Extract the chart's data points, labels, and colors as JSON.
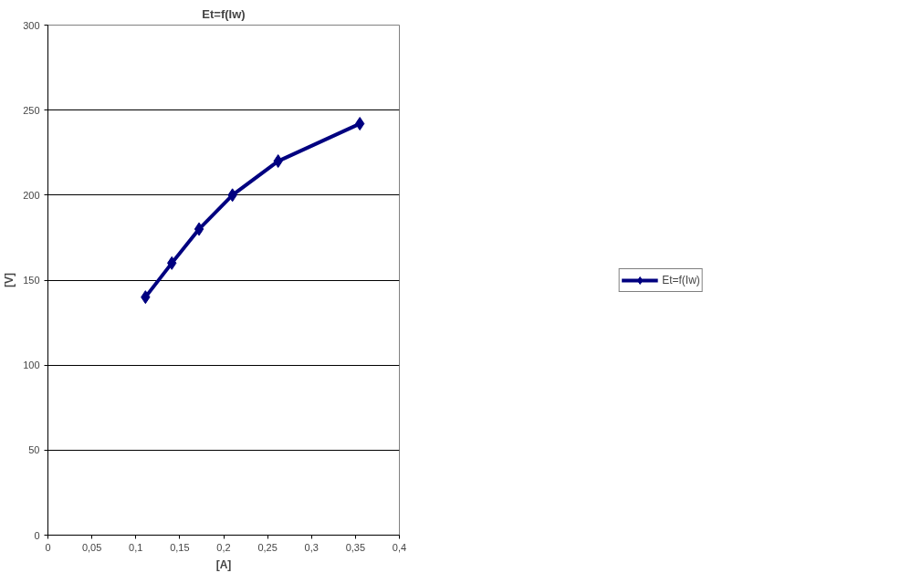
{
  "chart_data": {
    "type": "line",
    "title": "Et=f(Iw)",
    "xlabel": "[A]",
    "ylabel": "[V]",
    "x": [
      0.111,
      0.141,
      0.172,
      0.21,
      0.262,
      0.355
    ],
    "series": [
      {
        "name": "Et=f(Iw)",
        "color": "#000080",
        "values": [
          140,
          160,
          180,
          200,
          220,
          242
        ]
      }
    ],
    "xlim": [
      0,
      0.4
    ],
    "ylim": [
      0,
      300
    ],
    "xticks": [
      0,
      {
        "value": 0.05,
        "label": "0,05"
      },
      {
        "value": 0.1,
        "label": "0,1"
      },
      {
        "value": 0.15,
        "label": "0,15"
      },
      {
        "value": 0.2,
        "label": "0,2"
      },
      {
        "value": 0.25,
        "label": "0,25"
      },
      {
        "value": 0.3,
        "label": "0,3"
      },
      {
        "value": 0.35,
        "label": "0,35"
      },
      {
        "value": 0.4,
        "label": "0,4"
      }
    ],
    "yticks": [
      0,
      50,
      100,
      150,
      200,
      250,
      300
    ],
    "grid": "y",
    "legend": "right",
    "marker": "diamond",
    "line_style": "solid"
  }
}
